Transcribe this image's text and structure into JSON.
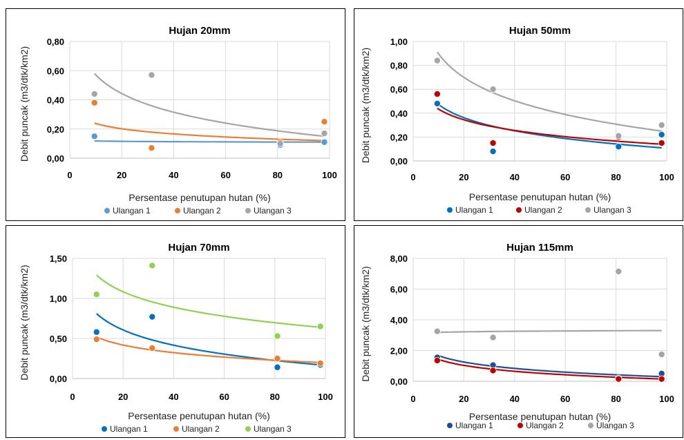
{
  "chart_data": [
    {
      "type": "scatter",
      "title": "Hujan 20mm",
      "xlabel": "Persentase penutupan hutan (%)",
      "ylabel": "Debit puncak (m3/dtk/km2)",
      "xlim": [
        0,
        100
      ],
      "ylim": [
        0,
        0.8
      ],
      "xticks": [
        "0",
        "20",
        "40",
        "60",
        "80",
        "100"
      ],
      "yticks": [
        "0,00",
        "0,20",
        "0,40",
        "0,60",
        "0,80"
      ],
      "grid": true,
      "legend_position": "bottom",
      "trendline": "logarithmic",
      "series": [
        {
          "name": "Ulangan 1",
          "color": "#5B9BD5",
          "x": [
            9.5,
            31.5,
            81,
            98
          ],
          "y": [
            0.15,
            0.07,
            0.09,
            0.11
          ],
          "trend": [
            0.118,
            0.11
          ]
        },
        {
          "name": "Ulangan 2",
          "color": "#ED7D31",
          "x": [
            9.5,
            31.5,
            81,
            98
          ],
          "y": [
            0.38,
            0.07,
            0.11,
            0.25
          ],
          "trend": [
            0.24,
            0.12
          ]
        },
        {
          "name": "Ulangan 3",
          "color": "#A5A5A5",
          "x": [
            9.5,
            31.5,
            81,
            98
          ],
          "y": [
            0.44,
            0.57,
            0.1,
            0.17
          ],
          "trend": [
            0.58,
            0.15
          ]
        }
      ]
    },
    {
      "type": "scatter",
      "title": "Hujan 50mm",
      "xlabel": "Persentase penutupan hutan (%)",
      "ylabel": "Debit puncak (m3/dtk/km2)",
      "xlim": [
        0,
        100
      ],
      "ylim": [
        0,
        1.0
      ],
      "xticks": [
        "0",
        "20",
        "40",
        "60",
        "80",
        "100"
      ],
      "yticks": [
        "0,00",
        "0,20",
        "0,40",
        "0,60",
        "0,80",
        "1,00"
      ],
      "grid": true,
      "legend_position": "bottom",
      "trendline": "logarithmic",
      "series": [
        {
          "name": "Ulangan 1",
          "color": "#0070C0",
          "x": [
            9.5,
            31.5,
            81,
            98
          ],
          "y": [
            0.48,
            0.08,
            0.12,
            0.22
          ],
          "trend": [
            0.48,
            0.11
          ]
        },
        {
          "name": "Ulangan 2",
          "color": "#C00000",
          "x": [
            9.5,
            31.5,
            81,
            98
          ],
          "y": [
            0.56,
            0.15,
            0.2,
            0.15
          ],
          "trend": [
            0.44,
            0.14
          ]
        },
        {
          "name": "Ulangan 3",
          "color": "#A5A5A5",
          "x": [
            9.5,
            31.5,
            81,
            98
          ],
          "y": [
            0.84,
            0.6,
            0.21,
            0.3
          ],
          "trend": [
            0.91,
            0.25
          ]
        }
      ]
    },
    {
      "type": "scatter",
      "title": "Hujan 70mm",
      "xlabel": "Persentase penutupan hutan (%)",
      "ylabel": "Debit puncak (m3/dtk/km2)",
      "xlim": [
        0,
        100
      ],
      "ylim": [
        0,
        1.5
      ],
      "xticks": [
        "0",
        "20",
        "40",
        "60",
        "80",
        "100"
      ],
      "yticks": [
        "0,00",
        "0,50",
        "1,00",
        "1,50"
      ],
      "grid": true,
      "legend_position": "bottom",
      "trendline": "logarithmic",
      "series": [
        {
          "name": "Ulangan 1",
          "color": "#0070C0",
          "x": [
            9.5,
            31.5,
            81,
            98
          ],
          "y": [
            0.58,
            0.77,
            0.14,
            0.17
          ],
          "trend": [
            0.81,
            0.17
          ]
        },
        {
          "name": "Ulangan 2",
          "color": "#ED7D31",
          "x": [
            9.5,
            31.5,
            81,
            98
          ],
          "y": [
            0.49,
            0.38,
            0.25,
            0.19
          ],
          "trend": [
            0.52,
            0.2
          ]
        },
        {
          "name": "Ulangan 3",
          "color": "#92D050",
          "x": [
            9.5,
            31.5,
            81,
            98
          ],
          "y": [
            1.05,
            1.41,
            0.53,
            0.65
          ],
          "trend": [
            1.29,
            0.64
          ]
        }
      ]
    },
    {
      "type": "scatter",
      "title": "Hujan 115mm",
      "xlabel": "Persentase penutupan hutan (%)",
      "ylabel": "Debit puncak (m3/dtk/km2)",
      "xlim": [
        0,
        100
      ],
      "ylim": [
        0,
        8
      ],
      "xticks": [
        "0",
        "20",
        "40",
        "60",
        "80",
        "100"
      ],
      "yticks": [
        "0,00",
        "2,00",
        "4,00",
        "6,00",
        "8,00"
      ],
      "grid": true,
      "legend_position": "bottom",
      "trendline": "logarithmic",
      "series": [
        {
          "name": "Ulangan 1",
          "color": "#1F4E99",
          "x": [
            9.5,
            31.5,
            81,
            98
          ],
          "y": [
            1.55,
            1.05,
            0.2,
            0.5
          ],
          "trend": [
            1.7,
            0.3
          ]
        },
        {
          "name": "Ulangan 2",
          "color": "#C00000",
          "x": [
            9.5,
            31.5,
            81,
            98
          ],
          "y": [
            1.35,
            0.7,
            0.15,
            0.15
          ],
          "trend": [
            1.45,
            0.15
          ]
        },
        {
          "name": "Ulangan 3",
          "color": "#A5A5A5",
          "x": [
            9.5,
            31.5,
            81,
            98
          ],
          "y": [
            3.25,
            2.85,
            7.15,
            1.75
          ],
          "trend": [
            3.18,
            3.3
          ]
        }
      ]
    }
  ]
}
